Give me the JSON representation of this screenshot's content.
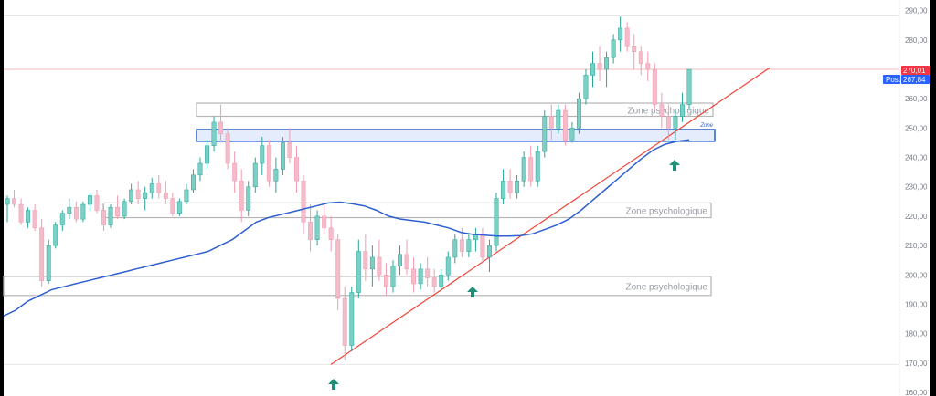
{
  "chart_data": {
    "type": "candlestick",
    "yaxis": {
      "ticks": [
        "290,00",
        "280,00",
        "270,00",
        "260,00",
        "250,00",
        "240,00",
        "230,00",
        "220,00",
        "210,00",
        "200,00",
        "190,00",
        "180,00",
        "170,00",
        "160,00"
      ],
      "tick_values": [
        290,
        280,
        270,
        260,
        250,
        240,
        230,
        220,
        210,
        200,
        190,
        180,
        170,
        160
      ],
      "range": [
        160,
        293
      ]
    },
    "price_badges": [
      {
        "value": "270,01",
        "label": "",
        "color": "#f23645"
      },
      {
        "value": "267,84",
        "label": "Post",
        "color": "#2962ff"
      }
    ],
    "zones": [
      {
        "label": "Zone psychologique",
        "y_range": [
          254,
          258.5
        ],
        "color": "#b5b5b5"
      },
      {
        "label": "Zone",
        "y_range": [
          245.5,
          249.5
        ],
        "color": "#2f5fd0",
        "fill": "#dfe8fb"
      },
      {
        "label": "Zone psychologique",
        "y_range": [
          219.5,
          224.5
        ],
        "color": "#b5b5b5"
      },
      {
        "label": "Zone psychologique",
        "y_range": [
          193,
          199.5
        ],
        "color": "#b5b5b5"
      }
    ],
    "horizontal_lines": [
      {
        "value": 288.5,
        "color": "#e6e6e6"
      },
      {
        "value": 270.01,
        "color": "#f7b7b7"
      },
      {
        "value": 169.5,
        "color": "#e6e6e6"
      }
    ],
    "trendline": {
      "from": [
        169.5
      ],
      "to": [
        270.5
      ],
      "color": "#f0443a"
    },
    "moving_average": {
      "color": "#2f5fd0",
      "values": [
        186,
        188,
        191,
        193,
        195,
        196,
        197,
        198,
        199,
        200,
        201,
        202,
        203,
        204,
        205,
        206,
        207,
        208,
        210,
        212,
        215,
        218,
        219.5,
        220.5,
        221.5,
        222.5,
        223.5,
        224.5,
        224.8,
        224.2,
        223.5,
        222,
        220,
        219,
        218.5,
        218,
        217,
        216,
        214.5,
        213.8,
        213.5,
        213.2,
        213.2,
        213.4,
        214,
        215.5,
        217,
        219,
        222,
        225.5,
        229,
        232.5,
        236,
        239.5,
        242.5,
        244.5,
        245.5,
        246
      ]
    },
    "candles": [
      [
        0,
        224,
        227,
        218,
        226
      ],
      [
        1,
        226,
        229,
        223,
        224
      ],
      [
        2,
        224,
        226,
        217,
        218
      ],
      [
        3,
        218,
        223,
        216,
        222
      ],
      [
        4,
        222,
        224,
        215,
        216
      ],
      [
        5,
        216,
        219,
        196,
        198
      ],
      [
        6,
        198,
        212,
        197,
        210
      ],
      [
        7,
        210,
        218,
        209,
        217
      ],
      [
        8,
        217,
        222,
        215,
        221
      ],
      [
        9,
        221,
        226,
        219,
        223
      ],
      [
        10,
        223,
        225,
        218,
        219
      ],
      [
        11,
        219,
        225,
        218,
        224
      ],
      [
        12,
        224,
        228,
        222,
        227
      ],
      [
        13,
        227,
        229,
        221,
        222
      ],
      [
        14,
        222,
        224,
        215,
        217
      ],
      [
        15,
        217,
        224,
        216,
        223
      ],
      [
        16,
        223,
        227,
        219,
        220
      ],
      [
        17,
        220,
        226,
        219,
        225
      ],
      [
        18,
        225,
        231,
        224,
        229
      ],
      [
        19,
        229,
        232,
        224,
        226
      ],
      [
        20,
        226,
        230,
        222,
        228
      ],
      [
        21,
        228,
        233,
        226,
        231
      ],
      [
        22,
        231,
        234,
        226,
        228
      ],
      [
        23,
        228,
        232,
        224,
        226
      ],
      [
        24,
        226,
        228,
        220,
        221
      ],
      [
        25,
        221,
        226,
        220,
        225
      ],
      [
        26,
        225,
        231,
        224,
        229
      ],
      [
        27,
        229,
        236,
        228,
        234
      ],
      [
        28,
        234,
        240,
        232,
        238
      ],
      [
        29,
        238,
        246,
        236,
        244
      ],
      [
        30,
        244,
        254,
        242,
        252
      ],
      [
        31,
        252,
        258,
        245,
        248
      ],
      [
        32,
        248,
        250,
        236,
        238
      ],
      [
        33,
        238,
        242,
        228,
        232
      ],
      [
        34,
        232,
        236,
        218,
        222
      ],
      [
        35,
        222,
        232,
        220,
        230
      ],
      [
        36,
        230,
        240,
        228,
        238
      ],
      [
        37,
        238,
        247,
        234,
        244
      ],
      [
        38,
        244,
        246,
        230,
        232
      ],
      [
        39,
        232,
        240,
        228,
        236
      ],
      [
        40,
        236,
        247,
        234,
        245
      ],
      [
        41,
        245,
        250,
        238,
        240
      ],
      [
        42,
        240,
        244,
        228,
        232
      ],
      [
        43,
        232,
        234,
        214,
        218
      ],
      [
        44,
        218,
        224,
        208,
        212
      ],
      [
        45,
        212,
        222,
        210,
        220
      ],
      [
        46,
        220,
        224,
        214,
        216
      ],
      [
        47,
        216,
        220,
        208,
        212
      ],
      [
        48,
        212,
        214,
        188,
        192
      ],
      [
        49,
        192,
        196,
        171,
        176
      ],
      [
        50,
        176,
        196,
        174,
        194
      ],
      [
        51,
        194,
        212,
        192,
        208
      ],
      [
        52,
        208,
        214,
        198,
        202
      ],
      [
        53,
        202,
        210,
        196,
        206
      ],
      [
        54,
        206,
        212,
        198,
        200
      ],
      [
        55,
        200,
        204,
        193,
        196
      ],
      [
        56,
        196,
        205,
        194,
        203
      ],
      [
        57,
        203,
        210,
        200,
        207
      ],
      [
        58,
        207,
        212,
        200,
        202
      ],
      [
        59,
        202,
        206,
        194,
        197
      ],
      [
        60,
        197,
        204,
        195,
        202
      ],
      [
        61,
        202,
        206,
        196,
        199
      ],
      [
        62,
        199,
        202,
        194,
        196
      ],
      [
        63,
        196,
        202,
        195,
        200
      ],
      [
        64,
        200,
        208,
        198,
        206
      ],
      [
        65,
        206,
        214,
        204,
        212
      ],
      [
        66,
        212,
        216,
        206,
        208
      ],
      [
        67,
        208,
        214,
        206,
        212
      ],
      [
        68,
        212,
        216,
        208,
        214
      ],
      [
        69,
        214,
        216,
        204,
        206
      ],
      [
        70,
        206,
        212,
        201,
        210
      ],
      [
        71,
        210,
        228,
        208,
        226
      ],
      [
        72,
        226,
        236,
        224,
        232
      ],
      [
        73,
        232,
        236,
        226,
        228
      ],
      [
        74,
        228,
        234,
        226,
        232
      ],
      [
        75,
        232,
        242,
        230,
        240
      ],
      [
        76,
        240,
        244,
        230,
        232
      ],
      [
        77,
        232,
        244,
        230,
        242
      ],
      [
        78,
        242,
        256,
        240,
        254
      ],
      [
        79,
        254,
        258,
        246,
        250
      ],
      [
        80,
        250,
        258,
        248,
        256
      ],
      [
        81,
        256,
        258,
        244,
        246
      ],
      [
        82,
        246,
        252,
        245,
        250
      ],
      [
        83,
        250,
        262,
        248,
        260
      ],
      [
        84,
        260,
        270,
        258,
        268
      ],
      [
        85,
        268,
        276,
        264,
        272
      ],
      [
        86,
        272,
        278,
        266,
        270
      ],
      [
        87,
        270,
        276,
        264,
        274
      ],
      [
        88,
        274,
        282,
        272,
        280
      ],
      [
        89,
        280,
        288,
        276,
        284
      ],
      [
        90,
        284,
        286,
        276,
        278
      ],
      [
        91,
        278,
        282,
        270,
        276
      ],
      [
        92,
        276,
        278,
        268,
        272
      ],
      [
        93,
        272,
        276,
        266,
        270
      ],
      [
        94,
        270,
        272,
        256,
        258
      ],
      [
        95,
        258,
        262,
        250,
        254
      ],
      [
        96,
        254,
        258,
        246,
        250
      ],
      [
        97,
        250,
        256,
        246,
        254
      ],
      [
        98,
        254,
        262,
        252,
        258
      ],
      [
        99,
        258,
        270,
        256,
        270
      ]
    ]
  },
  "arrows": [
    {
      "at_value": 169.5
    },
    {
      "at_value": 201
    },
    {
      "at_value": 246
    }
  ]
}
